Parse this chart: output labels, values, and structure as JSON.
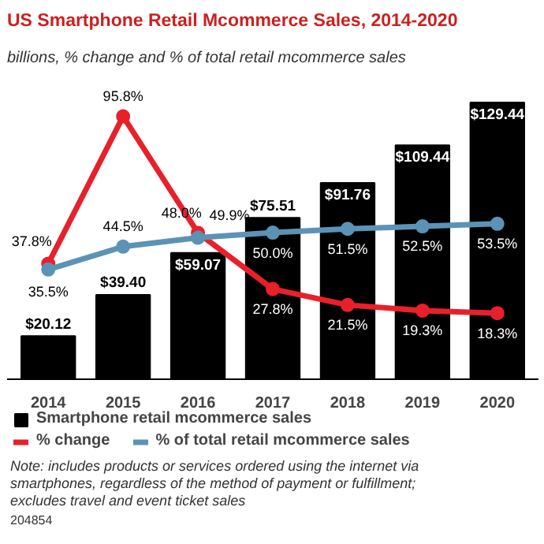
{
  "chart_data": {
    "type": "bar",
    "title": "US Smartphone Retail Mcommerce Sales, 2014-2020",
    "subtitle": "billions, % change and % of total retail mcommerce sales",
    "categories": [
      "2014",
      "2015",
      "2016",
      "2017",
      "2018",
      "2019",
      "2020"
    ],
    "series": [
      {
        "name": "Smartphone retail mcommerce sales",
        "color": "#000000",
        "values": [
          20.12,
          39.4,
          59.07,
          75.51,
          91.76,
          109.44,
          129.44
        ],
        "value_labels": [
          "$20.12",
          "$39.40",
          "$59.07",
          "$75.51",
          "$91.76",
          "$109.44",
          "$129.44"
        ]
      },
      {
        "name": "% change",
        "type": "line",
        "axis": "y2",
        "color": "#e8202a",
        "values": [
          37.8,
          95.8,
          49.9,
          27.8,
          21.5,
          19.3,
          18.3
        ],
        "value_labels": [
          "37.8%",
          "95.8%",
          "49.9%",
          "27.8%",
          "21.5%",
          "19.3%",
          "18.3%"
        ]
      },
      {
        "name": "% of total retail mcommerce sales",
        "type": "line",
        "axis": "y2",
        "color": "#5b93b6",
        "values": [
          35.5,
          44.5,
          48.0,
          50.0,
          51.5,
          52.5,
          53.5
        ],
        "value_labels": [
          "35.5%",
          "44.5%",
          "48.0%",
          "50.0%",
          "51.5%",
          "52.5%",
          "53.5%"
        ]
      }
    ],
    "marker": "circle",
    "grid": false,
    "legend": "bottom",
    "tick_labels": "x",
    "annotations": [
      "Note: includes products or services ordered using the internet via smartphones, regardless of the method of payment or fulfillment; excludes travel and event ticket sales",
      "204854"
    ]
  }
}
